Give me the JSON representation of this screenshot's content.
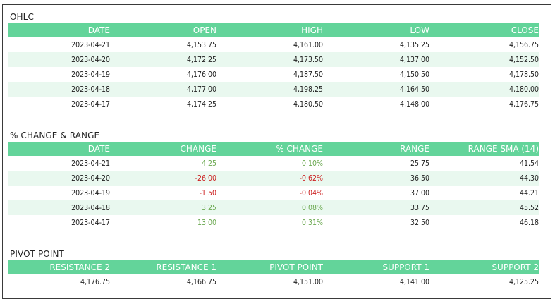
{
  "ohlc": {
    "title": "OHLC",
    "headers": [
      "DATE",
      "OPEN",
      "HIGH",
      "LOW",
      "CLOSE"
    ],
    "rows": [
      [
        "2023-04-21",
        "4,153.75",
        "4,161.00",
        "4,135.25",
        "4,156.75"
      ],
      [
        "2023-04-20",
        "4,172.25",
        "4,173.50",
        "4,137.00",
        "4,152.50"
      ],
      [
        "2023-04-19",
        "4,176.00",
        "4,187.50",
        "4,150.50",
        "4,178.50"
      ],
      [
        "2023-04-18",
        "4,177.00",
        "4,198.25",
        "4,164.50",
        "4,180.00"
      ],
      [
        "2023-04-17",
        "4,174.25",
        "4,180.50",
        "4,148.00",
        "4,176.75"
      ]
    ]
  },
  "change_range": {
    "title": "% CHANGE & RANGE",
    "headers": [
      "DATE",
      "CHANGE",
      "% CHANGE",
      "RANGE",
      "RANGE SMA (14)"
    ],
    "rows": [
      [
        "2023-04-21",
        "4.25",
        "0.10%",
        "25.75",
        "41.54"
      ],
      [
        "2023-04-20",
        "-26.00",
        "-0.62%",
        "36.50",
        "44.30"
      ],
      [
        "2023-04-19",
        "-1.50",
        "-0.04%",
        "37.00",
        "44.21"
      ],
      [
        "2023-04-18",
        "3.25",
        "0.08%",
        "33.75",
        "45.52"
      ],
      [
        "2023-04-17",
        "13.00",
        "0.31%",
        "32.50",
        "46.18"
      ]
    ],
    "colors": {
      "positive": "#6aa84f",
      "negative": "#cc2222"
    }
  },
  "pivot": {
    "title": "PIVOT POINT",
    "headers": [
      "RESISTANCE 2",
      "RESISTANCE 1",
      "PIVOT POINT",
      "SUPPORT 1",
      "SUPPORT 2"
    ],
    "rows": [
      [
        "4,176.75",
        "4,166.75",
        "4,151.00",
        "4,141.00",
        "4,125.25"
      ]
    ]
  },
  "colors": {
    "header_bg": "#63d49a",
    "stripe_bg": "#e9f8ef",
    "border": "#3a3a3a"
  }
}
